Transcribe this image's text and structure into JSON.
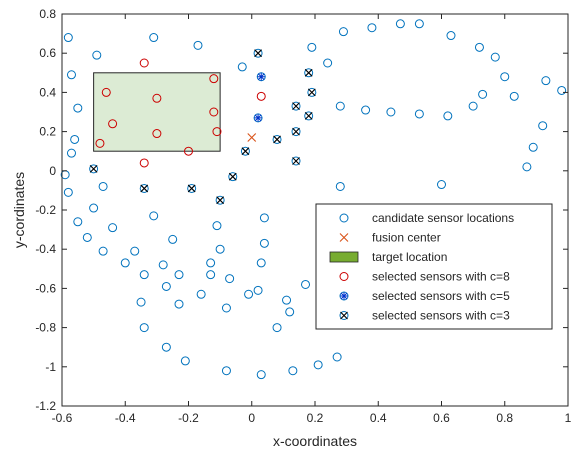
{
  "chart_data": {
    "type": "scatter",
    "title": "",
    "xlabel": "x-coordinates",
    "ylabel": "y-cordinates",
    "xlim": [
      -0.6,
      1
    ],
    "ylim": [
      -1.2,
      0.8
    ],
    "xticks": [
      -0.6,
      -0.4,
      -0.2,
      0,
      0.2,
      0.4,
      0.6,
      0.8,
      1
    ],
    "yticks": [
      -1.2,
      -1,
      -0.8,
      -0.6,
      -0.4,
      -0.2,
      0,
      0.2,
      0.4,
      0.6,
      0.8
    ],
    "xtick_labels": [
      "-0.6",
      "-0.4",
      "-0.2",
      "0",
      "0.2",
      "0.4",
      "0.6",
      "0.8",
      "1"
    ],
    "ytick_labels": [
      "-1.2",
      "-1",
      "-0.8",
      "-0.6",
      "-0.4",
      "-0.2",
      "0",
      "0.2",
      "0.4",
      "0.6",
      "0.8"
    ],
    "grid": false,
    "legend_position": "lower-right",
    "target_region": {
      "x": [
        -0.5,
        -0.1
      ],
      "y": [
        0.1,
        0.5
      ]
    },
    "series": [
      {
        "name": "candidate sensor locations",
        "marker": "circle-open",
        "color": "#0072BD",
        "points": [
          [
            -0.58,
            0.68
          ],
          [
            -0.57,
            0.49
          ],
          [
            -0.55,
            0.32
          ],
          [
            -0.56,
            0.16
          ],
          [
            -0.57,
            0.09
          ],
          [
            -0.59,
            -0.02
          ],
          [
            -0.58,
            -0.11
          ],
          [
            -0.55,
            -0.26
          ],
          [
            -0.52,
            -0.34
          ],
          [
            -0.5,
            -0.19
          ],
          [
            -0.49,
            0.59
          ],
          [
            -0.47,
            -0.08
          ],
          [
            -0.47,
            -0.41
          ],
          [
            -0.44,
            -0.29
          ],
          [
            -0.4,
            -0.47
          ],
          [
            -0.37,
            -0.41
          ],
          [
            -0.34,
            -0.53
          ],
          [
            -0.35,
            -0.67
          ],
          [
            -0.34,
            -0.8
          ],
          [
            -0.31,
            0.68
          ],
          [
            -0.31,
            -0.23
          ],
          [
            -0.28,
            -0.48
          ],
          [
            -0.27,
            -0.59
          ],
          [
            -0.27,
            -0.9
          ],
          [
            -0.25,
            -0.35
          ],
          [
            -0.23,
            -0.68
          ],
          [
            -0.23,
            -0.53
          ],
          [
            -0.21,
            -0.97
          ],
          [
            -0.17,
            0.64
          ],
          [
            -0.16,
            -0.63
          ],
          [
            -0.13,
            -0.47
          ],
          [
            -0.13,
            -0.53
          ],
          [
            -0.11,
            -0.28
          ],
          [
            -0.1,
            -0.4
          ],
          [
            -0.08,
            -0.7
          ],
          [
            -0.07,
            -0.55
          ],
          [
            -0.08,
            -1.02
          ],
          [
            -0.03,
            0.53
          ],
          [
            -0.01,
            -0.63
          ],
          [
            0.02,
            -0.61
          ],
          [
            0.03,
            -0.47
          ],
          [
            0.04,
            -0.37
          ],
          [
            0.04,
            -0.24
          ],
          [
            0.03,
            -1.04
          ],
          [
            0.08,
            -0.8
          ],
          [
            0.11,
            -0.66
          ],
          [
            0.12,
            -0.72
          ],
          [
            0.13,
            -1.02
          ],
          [
            0.17,
            -0.58
          ],
          [
            0.21,
            -0.99
          ],
          [
            0.27,
            -0.95
          ],
          [
            0.28,
            -0.08
          ],
          [
            0.19,
            0.63
          ],
          [
            0.28,
            0.33
          ],
          [
            0.24,
            0.55
          ],
          [
            0.29,
            0.71
          ],
          [
            0.36,
            0.31
          ],
          [
            0.38,
            0.73
          ],
          [
            0.44,
            0.3
          ],
          [
            0.47,
            0.75
          ],
          [
            0.53,
            0.29
          ],
          [
            0.53,
            0.75
          ],
          [
            0.6,
            -0.07
          ],
          [
            0.62,
            0.28
          ],
          [
            0.63,
            0.69
          ],
          [
            0.7,
            0.33
          ],
          [
            0.72,
            0.63
          ],
          [
            0.77,
            0.58
          ],
          [
            0.8,
            0.48
          ],
          [
            0.83,
            0.38
          ],
          [
            0.87,
            0.02
          ],
          [
            0.89,
            0.12
          ],
          [
            0.92,
            0.23
          ],
          [
            0.93,
            0.46
          ],
          [
            0.98,
            0.41
          ],
          [
            0.73,
            0.39
          ]
        ]
      },
      {
        "name": "fusion center",
        "marker": "x",
        "color": "#D95319",
        "points": [
          [
            0,
            0.17
          ]
        ]
      },
      {
        "name": "target location",
        "marker": "rect-fill",
        "color": "#77AC30"
      },
      {
        "name": "selected sensors with c=8",
        "marker": "circle-open",
        "color": "#CC0000",
        "points": [
          [
            -0.34,
            0.55
          ],
          [
            -0.46,
            0.4
          ],
          [
            -0.44,
            0.24
          ],
          [
            -0.48,
            0.14
          ],
          [
            -0.3,
            0.37
          ],
          [
            -0.3,
            0.19
          ],
          [
            -0.34,
            0.04
          ],
          [
            -0.2,
            0.1
          ],
          [
            -0.12,
            0.47
          ],
          [
            -0.12,
            0.3
          ],
          [
            -0.11,
            0.2
          ],
          [
            0.03,
            0.38
          ]
        ]
      },
      {
        "name": "selected sensors with c=5",
        "marker": "asterisk",
        "color": "#0033CC",
        "points": [
          [
            0.03,
            0.48
          ],
          [
            0.02,
            0.27
          ]
        ]
      },
      {
        "name": "selected sensors with c=3",
        "marker": "x-in-circle",
        "color": "#000000",
        "points": [
          [
            0.02,
            0.6
          ],
          [
            0.18,
            0.5
          ],
          [
            0.19,
            0.4
          ],
          [
            0.14,
            0.33
          ],
          [
            0.18,
            0.28
          ],
          [
            0.14,
            0.2
          ],
          [
            0.08,
            0.16
          ],
          [
            0.14,
            0.05
          ],
          [
            -0.02,
            0.1
          ],
          [
            -0.5,
            0.01
          ],
          [
            -0.34,
            -0.09
          ],
          [
            -0.19,
            -0.09
          ],
          [
            -0.1,
            -0.15
          ],
          [
            -0.06,
            -0.03
          ]
        ]
      }
    ]
  }
}
